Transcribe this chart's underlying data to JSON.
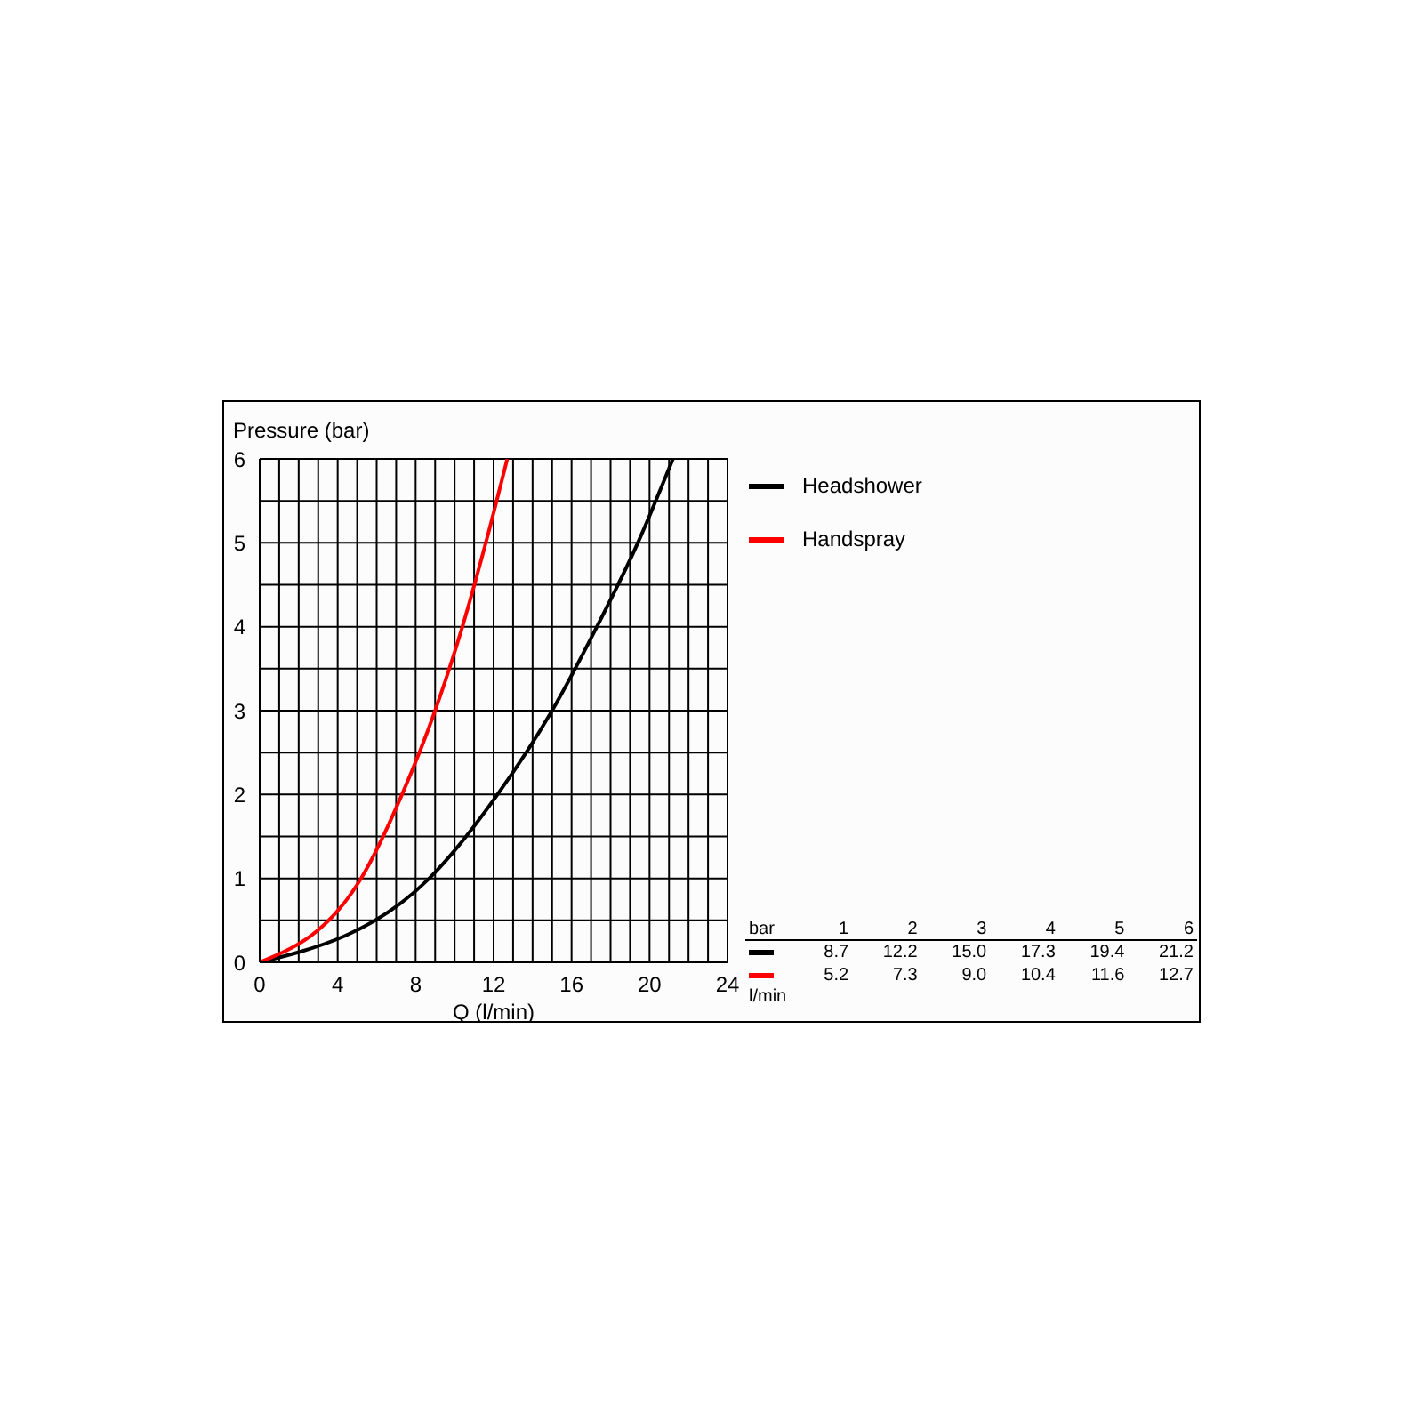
{
  "chart_data": {
    "type": "line",
    "xlabel": "Q (l/min)",
    "ylabel": "Pressure (bar)",
    "series": [
      {
        "name": "Headshower",
        "color": "#000000",
        "x": [
          0,
          8.7,
          12.2,
          15.0,
          17.3,
          19.4,
          21.2
        ],
        "values": [
          0,
          1,
          2,
          3,
          4,
          5,
          6
        ]
      },
      {
        "name": "Handspray",
        "color": "#ff0000",
        "x": [
          0,
          5.2,
          7.3,
          9.0,
          10.4,
          11.6,
          12.7
        ],
        "values": [
          0,
          1,
          2,
          3,
          4,
          5,
          6
        ]
      }
    ],
    "xlim": [
      0,
      24
    ],
    "xticks": [
      0,
      {
        "value": 1,
        "label": null
      },
      {
        "value": 2,
        "label": null
      },
      {
        "value": 3,
        "label": null
      },
      4,
      {
        "value": 5,
        "label": null
      },
      {
        "value": 6,
        "label": null
      },
      {
        "value": 7,
        "label": null
      },
      8,
      {
        "value": 9,
        "label": null
      },
      {
        "value": 10,
        "label": null
      },
      {
        "value": 11,
        "label": null
      },
      12,
      {
        "value": 13,
        "label": null
      },
      {
        "value": 14,
        "label": null
      },
      {
        "value": 15,
        "label": null
      },
      16,
      {
        "value": 17,
        "label": null
      },
      {
        "value": 18,
        "label": null
      },
      {
        "value": 19,
        "label": null
      },
      20,
      {
        "value": 21,
        "label": null
      },
      {
        "value": 22,
        "label": null
      },
      {
        "value": 23,
        "label": null
      },
      24
    ],
    "ylim": [
      0,
      6
    ],
    "yticks": [
      0,
      {
        "value": 0.5,
        "label": null
      },
      1,
      {
        "value": 1.5,
        "label": null
      },
      2,
      {
        "value": 2.5,
        "label": null
      },
      3,
      {
        "value": 3.5,
        "label": null
      },
      4,
      {
        "value": 4.5,
        "label": null
      },
      5,
      {
        "value": 5.5,
        "label": null
      },
      6
    ],
    "grid": true,
    "legend": "top right",
    "marker": "none",
    "line_style": "solid",
    "annotations": [
      "bar",
      "1",
      "2",
      "3",
      "4",
      "5",
      "6",
      "8.7",
      "12.2",
      "15.0",
      "17.3",
      "19.4",
      "21.2",
      "5.2",
      "7.3",
      "9.0",
      "10.4",
      "11.6",
      "12.7",
      "l/min"
    ]
  }
}
